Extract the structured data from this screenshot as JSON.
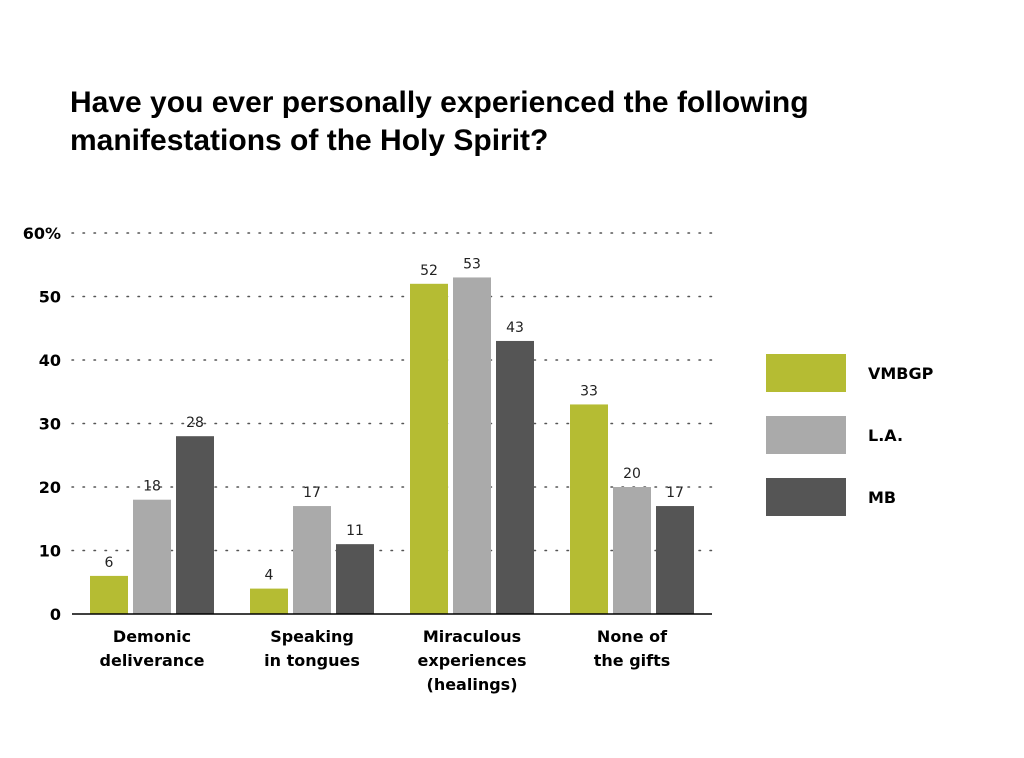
{
  "title_lines": [
    "Have you ever personally experienced the following",
    "manifestations of the Holy Spirit?"
  ],
  "chart_data": {
    "type": "bar",
    "categories": [
      [
        "Demonic",
        "deliverance"
      ],
      [
        "Speaking",
        "in tongues"
      ],
      [
        "Miraculous",
        "experiences",
        "(healings)"
      ],
      [
        "None of",
        "the gifts"
      ]
    ],
    "series": [
      {
        "name": "VMBGP",
        "color": "#b5bc33",
        "values": [
          6,
          4,
          52,
          33
        ]
      },
      {
        "name": "L.A.",
        "color": "#aaaaaa",
        "values": [
          18,
          17,
          53,
          20
        ]
      },
      {
        "name": "MB",
        "color": "#555555",
        "values": [
          28,
          11,
          43,
          17
        ]
      }
    ],
    "ylim": [
      0,
      60
    ],
    "yticks": [
      {
        "value": 0,
        "label": "0"
      },
      {
        "value": 10,
        "label": "10"
      },
      {
        "value": 20,
        "label": "20"
      },
      {
        "value": 30,
        "label": "30"
      },
      {
        "value": 40,
        "label": "40"
      },
      {
        "value": 50,
        "label": "50"
      },
      {
        "value": 60,
        "label": "60%"
      }
    ],
    "grid": true,
    "legend_position": "right",
    "xlabel": "",
    "ylabel": ""
  }
}
